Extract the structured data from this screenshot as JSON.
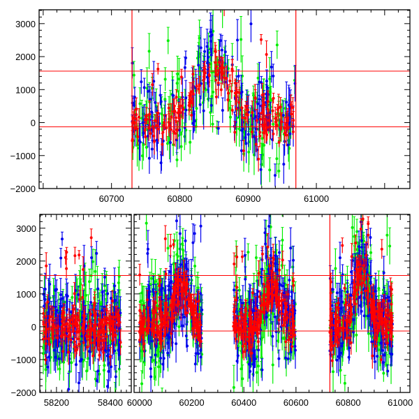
{
  "chart_data": [
    {
      "type": "scatter",
      "panel": "top",
      "title": "",
      "xlabel": "",
      "ylabel": "",
      "xlim": [
        60594,
        61137
      ],
      "ylim": [
        -2000,
        3420
      ],
      "xticks": [
        60700,
        60800,
        60900,
        61000
      ],
      "xtick_labels": [
        "60700",
        "60800",
        "60900",
        "61000"
      ],
      "yticks": [
        -2000,
        -1000,
        0,
        1000,
        2000,
        3000
      ],
      "ytick_labels": [
        "−2000",
        "−1000",
        "0",
        "1000",
        "2000",
        "3000"
      ],
      "hlines": [
        1560,
        -130
      ],
      "vlines": [
        60730,
        60970
      ],
      "segments": [
        [
          60730,
          60970
        ]
      ]
    },
    {
      "type": "scatter",
      "panel": "bottom-left",
      "xlim": [
        58138,
        58478
      ],
      "ylim": [
        -2000,
        3420
      ],
      "xticks": [
        58200,
        58400
      ],
      "xtick_labels": [
        "58200",
        "58400"
      ],
      "yticks": [
        -2000,
        -1000,
        0,
        1000,
        2000,
        3000
      ],
      "ytick_labels": [
        "−2000",
        "−1000",
        "0",
        "1000",
        "2000",
        "3000"
      ],
      "hlines": [
        1560,
        -130
      ],
      "vlines": [],
      "segments": [
        [
          58150,
          58440
        ]
      ]
    },
    {
      "type": "scatter",
      "panel": "bottom-right",
      "xlim": [
        59979,
        61037
      ],
      "ylim": [
        -2000,
        3420
      ],
      "xticks": [
        60000,
        60200,
        60400,
        60600,
        60800,
        61000
      ],
      "xtick_labels": [
        "60000",
        "60200",
        "60400",
        "60600",
        "60800",
        "61000"
      ],
      "yticks": [
        -2000,
        -1000,
        0,
        1000,
        2000,
        3000
      ],
      "ytick_labels": [],
      "hlines": [
        1560,
        -130
      ],
      "vlines": [
        60730
      ],
      "segments": [
        [
          60000,
          60240
        ],
        [
          60360,
          60600
        ],
        [
          60730,
          60970
        ]
      ]
    }
  ],
  "series": [
    {
      "name": "green",
      "color": "#00ee00",
      "scatter": 1300,
      "err": 500
    },
    {
      "name": "blue",
      "color": "#0000ee",
      "scatter": 1100,
      "err": 450
    },
    {
      "name": "red",
      "color": "#ff0000",
      "scatter": 550,
      "err": 300
    }
  ],
  "points_per_segment": 170,
  "line_color": "#ff0000"
}
